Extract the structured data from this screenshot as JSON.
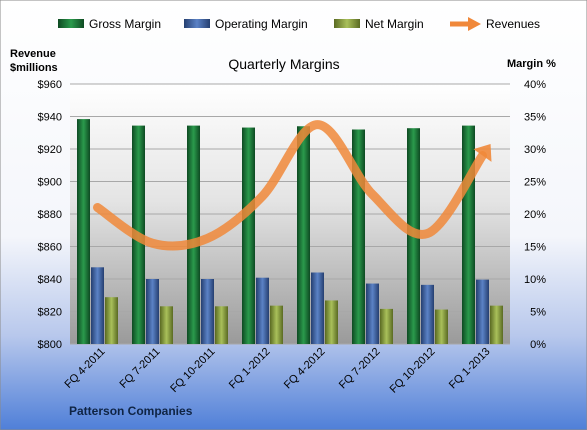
{
  "chart_data": {
    "type": "bar",
    "title": "Quarterly Margins",
    "company": "Patterson Companies",
    "left_axis_label_line1": "Revenue",
    "left_axis_label_line2": "$millions",
    "right_axis_label": "Margin %",
    "categories": [
      "FQ 4-2011",
      "FQ 7-2011",
      "FQ 10-2011",
      "FQ 1-2012",
      "FQ 4-2012",
      "FQ 7-2012",
      "FQ 10-2012",
      "FQ 1-2013"
    ],
    "left_axis": {
      "min": 800,
      "max": 960,
      "ticks": [
        "$800",
        "$820",
        "$840",
        "$860",
        "$880",
        "$900",
        "$920",
        "$940",
        "$960"
      ]
    },
    "right_axis": {
      "min": 0,
      "max": 40,
      "ticks": [
        "0%",
        "5%",
        "10%",
        "15%",
        "20%",
        "25%",
        "30%",
        "35%",
        "40%"
      ]
    },
    "series": [
      {
        "name": "Gross Margin",
        "kind": "bar",
        "axis": "right",
        "color": "#1e7a3a",
        "values": [
          34.6,
          33.6,
          33.6,
          33.3,
          33.5,
          33.0,
          33.2,
          33.6
        ]
      },
      {
        "name": "Operating Margin",
        "kind": "bar",
        "axis": "right",
        "color": "#3f66a8",
        "values": [
          11.8,
          10.0,
          10.0,
          10.2,
          11.0,
          9.3,
          9.1,
          9.9
        ]
      },
      {
        "name": "Net Margin",
        "kind": "bar",
        "axis": "right",
        "color": "#8fa548",
        "values": [
          7.2,
          5.8,
          5.8,
          5.9,
          6.7,
          5.4,
          5.3,
          5.9
        ]
      },
      {
        "name": "Revenues",
        "kind": "line",
        "axis": "left",
        "color": "#f0883a",
        "values": [
          884,
          862,
          865,
          891,
          935,
          892,
          868,
          916
        ]
      }
    ],
    "legend_position": "top",
    "grid": true
  }
}
